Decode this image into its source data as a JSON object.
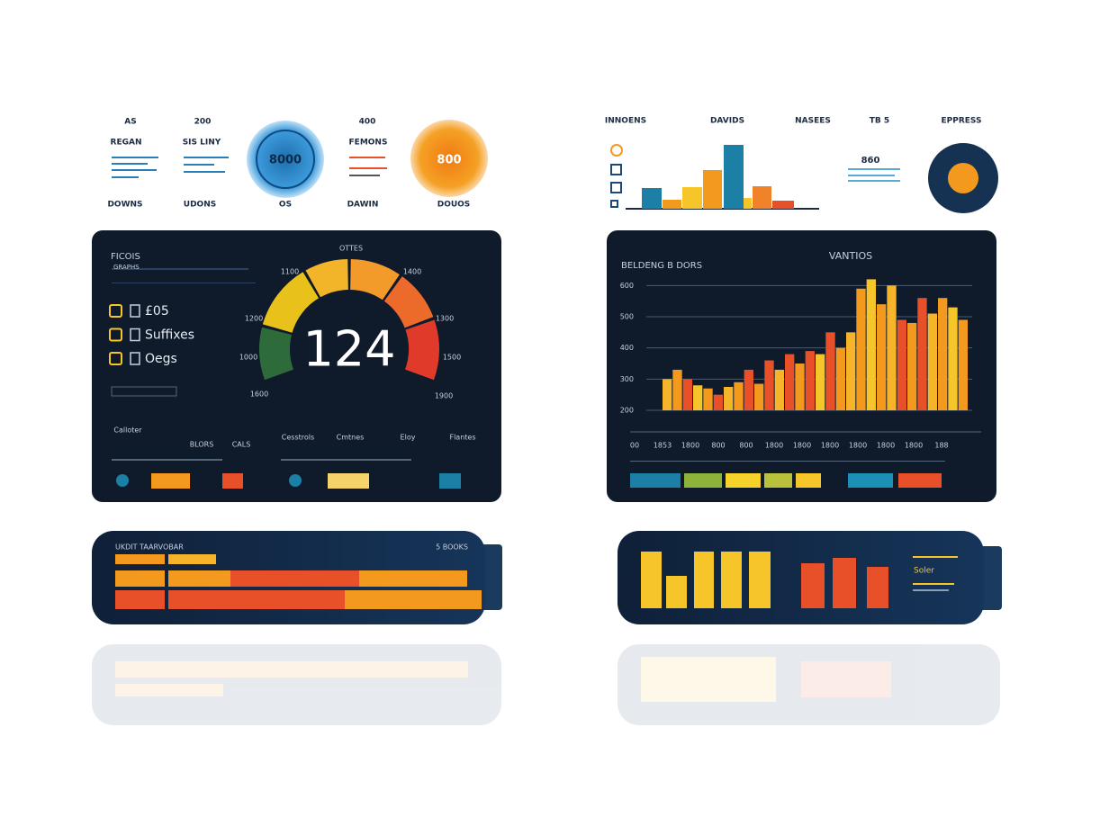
{
  "top_left": {
    "col_labels": [
      "AS",
      "200",
      "400"
    ],
    "row_labels": [
      "REGAN",
      "SIS LINY",
      "FEMONS"
    ],
    "footer_labels": [
      "DOWNS",
      "UDONS",
      "OS",
      "DAWIN",
      "DOUOS"
    ],
    "blue_dial": "8000",
    "orange_dial": "800"
  },
  "top_right": {
    "labels": [
      "INNOENS",
      "DAVIDS",
      "NASEES",
      "TB 5",
      "EPPRESS"
    ],
    "stat": "860",
    "mini_chart": {
      "type": "bar",
      "values": [
        23,
        10,
        24,
        43,
        71,
        12,
        25,
        9
      ],
      "colors": [
        "#1b7fa6",
        "#f39a1e",
        "#f6c52a",
        "#f39a1e",
        "#1b7fa6",
        "#f6c52a",
        "#f0822a",
        "#e8502a"
      ]
    }
  },
  "gauge_panel": {
    "title": "FICOIS",
    "subtitle": "GRAPHS",
    "items": [
      "£05",
      "Suffixes",
      "Oegs"
    ],
    "gauge_value": "124",
    "gauge_top": "OTTES",
    "gauge_labels": [
      "1100",
      "1400",
      "1200",
      "1300",
      "1000",
      "1500",
      "1600",
      "1900"
    ],
    "footer": [
      "Calloter",
      "BLORS",
      "CALS",
      "Cesstrols",
      "Cmtnes",
      "Eloy",
      "Flantes"
    ]
  },
  "bar_panel": {
    "title": "VANTIOS",
    "header": "BELDENG B DORS",
    "chart": {
      "type": "bar",
      "values": [
        300,
        330,
        300,
        280,
        270,
        250,
        275,
        290,
        330,
        285,
        360,
        330,
        380,
        350,
        390,
        380,
        450,
        400,
        450,
        590,
        620,
        540,
        600,
        490,
        480,
        560,
        510,
        560,
        530,
        490
      ],
      "colors": [
        "#f6b42a",
        "#f39a1e",
        "#e8502a",
        "#f6c52a",
        "#f39a1e",
        "#e8502a",
        "#f6b42a",
        "#f39a1e",
        "#e8502a",
        "#f39a1e",
        "#e8502a",
        "#f6b42a",
        "#e8502a",
        "#f39a1e",
        "#e8502a",
        "#f6c52a",
        "#e8502a",
        "#f39a1e",
        "#f6b42a",
        "#f39a1e",
        "#f6c52a",
        "#f39a1e",
        "#f6b42a",
        "#e8502a",
        "#f39a1e",
        "#e8502a",
        "#f6b42a",
        "#f39a1e",
        "#f6c52a",
        "#f39a1e"
      ],
      "ylim": [
        200,
        650
      ],
      "yticks": [
        200,
        300,
        400,
        500,
        600
      ],
      "grid": true,
      "categories": [
        "00",
        "1853",
        "1800",
        "800",
        "800",
        "1800",
        "1800",
        "1800",
        "1800",
        "1800",
        "1800",
        "188"
      ]
    }
  },
  "bottom_left": {
    "title": "UKDIT TAARVOBAR",
    "note": "5 BOOKS",
    "rows": [
      {
        "values": [
          55,
          53
        ],
        "colors": [
          "#f39a1e",
          "#f6b42a"
        ]
      },
      {
        "values": [
          55,
          69,
          143,
          120
        ],
        "colors": [
          "#f39a1e",
          "#f39a1e",
          "#e8502a",
          "#f39a1e"
        ]
      },
      {
        "values": [
          55,
          196,
          152
        ],
        "colors": [
          "#e8502a",
          "#e8502a",
          "#f39a1e"
        ]
      }
    ]
  },
  "bottom_right": {
    "label": "Soler",
    "chart": {
      "type": "bar",
      "values": [
        63,
        36,
        63,
        63,
        63,
        50,
        56,
        46
      ],
      "colors": [
        "#f6c52a",
        "#f6c52a",
        "#f6c52a",
        "#f6c52a",
        "#f6c52a",
        "#e8502a",
        "#e8502a",
        "#e8502a"
      ]
    }
  }
}
